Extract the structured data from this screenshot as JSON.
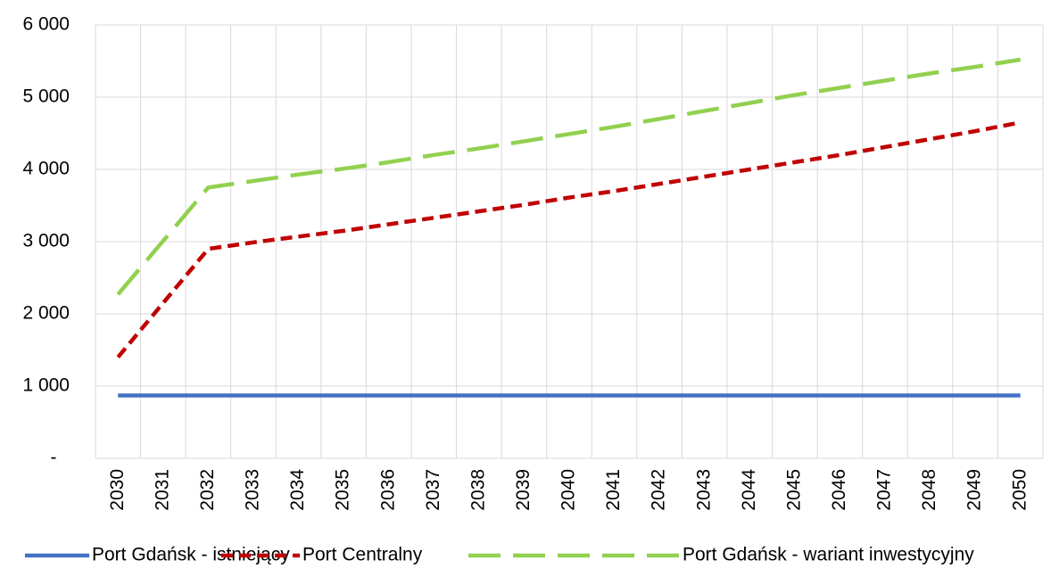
{
  "chart_data": {
    "type": "line",
    "categories": [
      "2030",
      "2031",
      "2032",
      "2033",
      "2034",
      "2035",
      "2036",
      "2037",
      "2038",
      "2039",
      "2040",
      "2041",
      "2042",
      "2043",
      "2044",
      "2045",
      "2046",
      "2047",
      "2048",
      "2049",
      "2050"
    ],
    "series": [
      {
        "name": "Port Gdańsk - istniejący",
        "color": "#4472c4",
        "dash": "solid",
        "values": [
          870,
          870,
          870,
          870,
          870,
          870,
          870,
          870,
          870,
          870,
          870,
          870,
          870,
          870,
          870,
          870,
          870,
          870,
          870,
          870,
          870
        ]
      },
      {
        "name": "Port Centralny",
        "color": "#c00000",
        "dash": "dash",
        "values": [
          1400,
          2150,
          2900,
          2990,
          3070,
          3150,
          3240,
          3330,
          3420,
          3510,
          3610,
          3700,
          3800,
          3900,
          4000,
          4100,
          4200,
          4310,
          4420,
          4530,
          4650
        ]
      },
      {
        "name": "Port Gdańsk - wariant inwestycyjny",
        "color": "#92d050",
        "dash": "longdash",
        "values": [
          2270,
          3010,
          3750,
          3840,
          3930,
          4010,
          4100,
          4200,
          4290,
          4390,
          4490,
          4590,
          4700,
          4810,
          4920,
          5030,
          5130,
          5230,
          5330,
          5420,
          5520
        ]
      }
    ],
    "ylim": [
      0,
      6000
    ],
    "yticks": [
      {
        "value": 0,
        "label": "-"
      },
      {
        "value": 1000,
        "label": "1 000"
      },
      {
        "value": 2000,
        "label": "2 000"
      },
      {
        "value": 3000,
        "label": "3 000"
      },
      {
        "value": 4000,
        "label": "4 000"
      },
      {
        "value": 5000,
        "label": "5 000"
      },
      {
        "value": 6000,
        "label": "6 000"
      }
    ],
    "grid": true,
    "legend": "bottom"
  }
}
